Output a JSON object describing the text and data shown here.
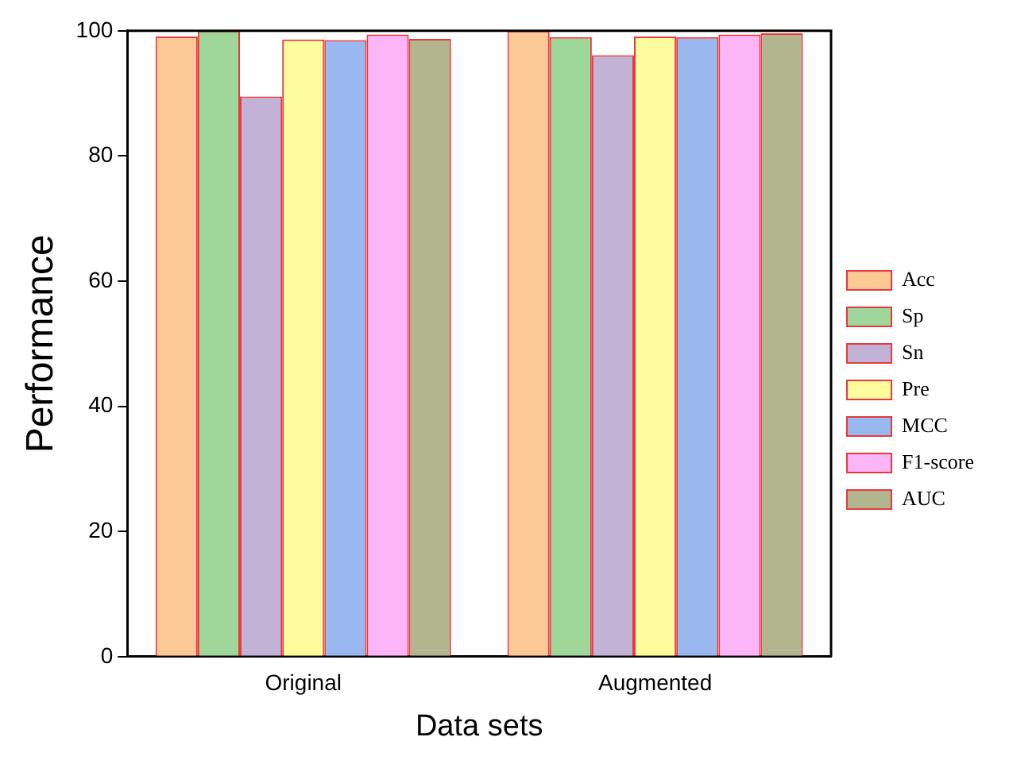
{
  "chart_data": {
    "type": "bar",
    "xlabel": "Data sets",
    "ylabel": "Performance",
    "categories": [
      "Original",
      "Augmented"
    ],
    "series": [
      {
        "name": "Acc",
        "color": "#fcc896",
        "values": [
          99.1,
          100
        ]
      },
      {
        "name": "Sp",
        "color": "#9fd79b",
        "values": [
          100,
          99.0
        ]
      },
      {
        "name": "Sn",
        "color": "#c2b2d6",
        "values": [
          89.5,
          96.1
        ]
      },
      {
        "name": "Pre",
        "color": "#fffc9e",
        "values": [
          98.6,
          99.1
        ]
      },
      {
        "name": "MCC",
        "color": "#99b8f0",
        "values": [
          98.5,
          99.0
        ]
      },
      {
        "name": "F1-score",
        "color": "#fcb6f7",
        "values": [
          99.4,
          99.4
        ]
      },
      {
        "name": "AUC",
        "color": "#b1b68f",
        "values": [
          98.7,
          99.6
        ]
      }
    ],
    "ylim": [
      0,
      100
    ],
    "yticks": [
      0,
      20,
      40,
      60,
      80,
      100
    ],
    "grid": false,
    "legend": "right"
  }
}
